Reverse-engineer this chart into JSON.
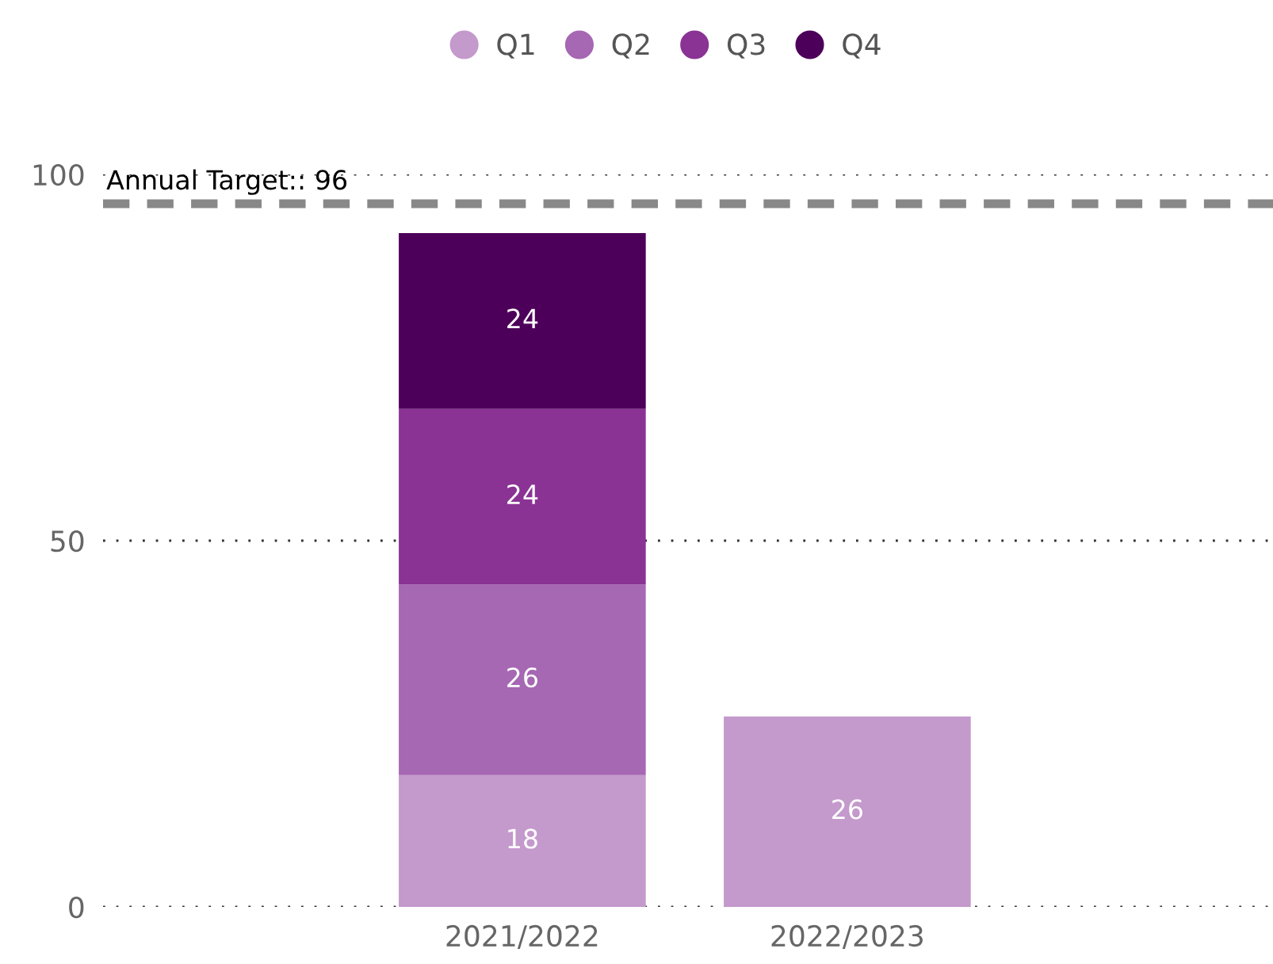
{
  "chart_data": {
    "type": "bar",
    "stacked": true,
    "categories": [
      "2021/2022",
      "2022/2023"
    ],
    "series": [
      {
        "name": "Q1",
        "color": "#c499cc",
        "values": [
          18,
          26
        ]
      },
      {
        "name": "Q2",
        "color": "#a667b3",
        "values": [
          26,
          null
        ]
      },
      {
        "name": "Q3",
        "color": "#8a3394",
        "values": [
          24,
          null
        ]
      },
      {
        "name": "Q4",
        "color": "#4d0059",
        "values": [
          24,
          null
        ]
      }
    ],
    "ylim": [
      0,
      100
    ],
    "yticks": [
      0,
      50,
      100
    ],
    "grid": "y",
    "legend": "top",
    "data_labels": true,
    "ref_lines": [
      {
        "axis": "y",
        "value": 96,
        "label": "Annual Target:: 96",
        "color": "#888888",
        "line_style": "dashed"
      }
    ]
  }
}
